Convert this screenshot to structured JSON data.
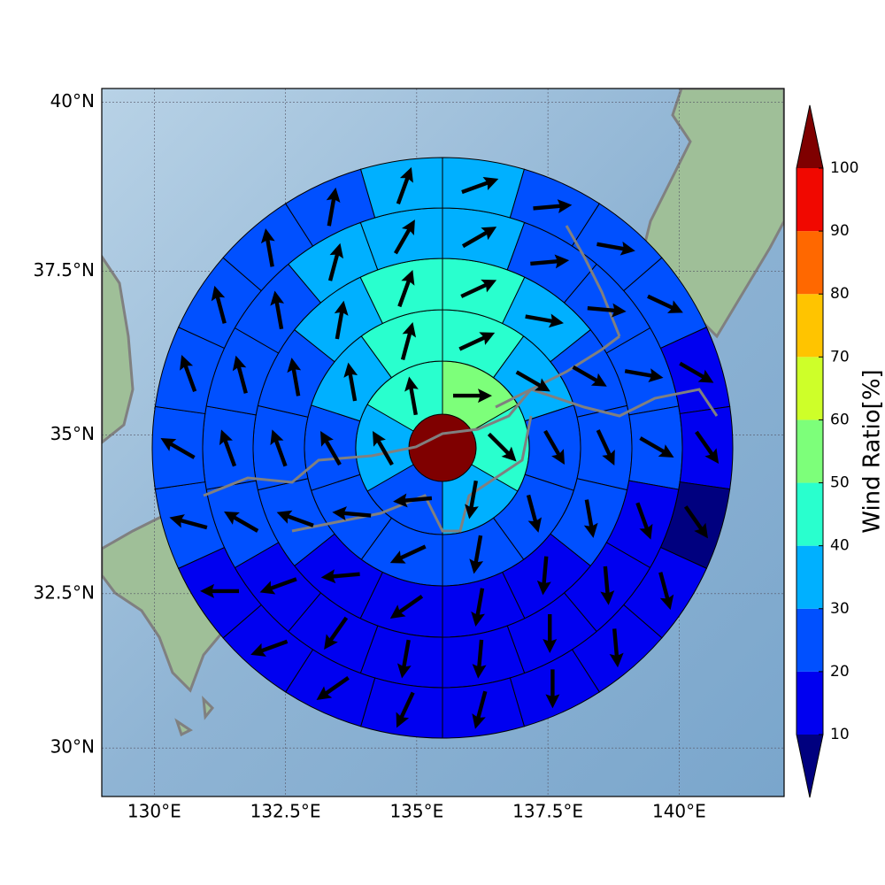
{
  "chart_data": {
    "type": "polar_sector_map",
    "xlim": [
      129,
      142
    ],
    "ylim": [
      29.2,
      40.2
    ],
    "xticks": [
      {
        "value": 130,
        "label": "130°E"
      },
      {
        "value": 132.5,
        "label": "132.5°E"
      },
      {
        "value": 135,
        "label": "135°E"
      },
      {
        "value": 137.5,
        "label": "137.5°E"
      },
      {
        "value": 140,
        "label": "140°E"
      }
    ],
    "yticks": [
      {
        "value": 30,
        "label": "30°N"
      },
      {
        "value": 32.5,
        "label": "32.5°N"
      },
      {
        "value": 35,
        "label": "35°N"
      },
      {
        "value": 37.5,
        "label": "37.5°N"
      },
      {
        "value": 40,
        "label": "40°N"
      }
    ],
    "grid": true,
    "colorbar": {
      "label": "Wind Ratio[%]",
      "levels": [
        10,
        20,
        30,
        40,
        50,
        60,
        70,
        80,
        90,
        100
      ],
      "colors": [
        "#00007f",
        "#0000f0",
        "#0050ff",
        "#00b0ff",
        "#29ffce",
        "#7dff7a",
        "#ceff29",
        "#ffc400",
        "#ff6800",
        "#f10800",
        "#7f0000"
      ]
    },
    "center": {
      "value": 105
    },
    "rings": [
      {
        "values": [
          55,
          45,
          35,
          25,
          35,
          45
        ],
        "directions": [
          90,
          135,
          190,
          265,
          330,
          350
        ]
      },
      {
        "values": [
          45,
          35,
          25,
          25,
          25,
          25,
          25,
          25,
          35,
          45
        ],
        "directions": [
          65,
          120,
          150,
          165,
          190,
          245,
          275,
          330,
          350,
          15
        ]
      },
      {
        "values": [
          45,
          35,
          25,
          25,
          25,
          15,
          15,
          15,
          15,
          25,
          25,
          25,
          35,
          45
        ],
        "directions": [
          65,
          100,
          120,
          155,
          170,
          185,
          190,
          235,
          265,
          290,
          340,
          350,
          10,
          20
        ]
      },
      {
        "values": [
          35,
          25,
          25,
          25,
          25,
          15,
          15,
          15,
          15,
          15,
          15,
          15,
          25,
          25,
          25,
          25,
          35,
          35
        ],
        "directions": [
          60,
          85,
          95,
          100,
          120,
          160,
          175,
          180,
          185,
          190,
          215,
          250,
          300,
          340,
          345,
          350,
          15,
          30
        ]
      },
      {
        "values": [
          35,
          25,
          25,
          25,
          15,
          15,
          5,
          15,
          15,
          15,
          15,
          15,
          15,
          15,
          15,
          25,
          25,
          25,
          25,
          25,
          25,
          35
        ],
        "directions": [
          70,
          85,
          100,
          115,
          120,
          145,
          145,
          165,
          175,
          180,
          195,
          205,
          235,
          250,
          270,
          285,
          300,
          340,
          345,
          350,
          10,
          20
        ]
      }
    ]
  }
}
